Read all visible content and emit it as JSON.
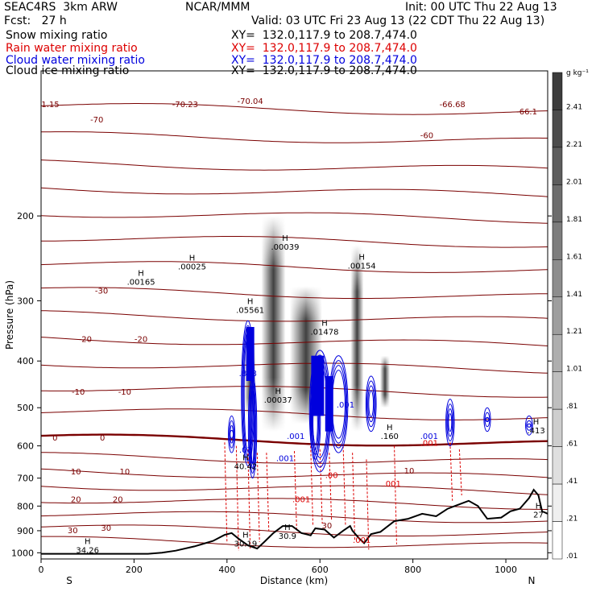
{
  "header": {
    "model": "SEAC4RS  3km ARW",
    "org": "NCAR/MMM",
    "init": "Init: 00 UTC Thu 22 Aug 13",
    "fcst": "Fcst:   27 h",
    "valid": "Valid: 03 UTC Fri 23 Aug 13 (22 CDT Thu 22 Aug 13)"
  },
  "colors": {
    "snow": "#000000",
    "rain": "#dd0000",
    "cloud": "#0000dd",
    "ice": "#000000",
    "temp": "#7a0000",
    "terrain": "#000000"
  },
  "chart_data": {
    "type": "contour",
    "xlabel": "Distance (km)",
    "ylabel": "Pressure (hPa)",
    "x_range": [
      0,
      1090
    ],
    "y_range": [
      1030,
      100
    ],
    "y_scale": "log",
    "x_ticks": [
      0,
      200,
      400,
      600,
      800,
      1000
    ],
    "y_ticks": [
      200,
      300,
      400,
      500,
      600,
      700,
      800,
      900,
      1000
    ],
    "x_end_labels": {
      "left": "S",
      "right": "N"
    },
    "legend_fields": [
      {
        "name": "Snow mixing ratio",
        "xy": "XY=  132.0,117.9 to 208.7,474.0",
        "color": "#000000"
      },
      {
        "name": "Rain water mixing ratio",
        "xy": "XY=  132.0,117.9 to 208.7,474.0",
        "color": "#dd0000"
      },
      {
        "name": "Cloud water mixing ratio",
        "xy": "XY=  132.0,117.9 to 208.7,474.0",
        "color": "#0000dd"
      },
      {
        "name": "Cloud ice mixing ratio",
        "xy": "XY=  132.0,117.9 to 208.7,474.0",
        "color": "#000000"
      }
    ],
    "colorbar": {
      "unit": "g kg⁻¹",
      "labels": [
        "2.41",
        "2.21",
        "2.01",
        "1.81",
        "1.61",
        "1.41",
        "1.21",
        "1.01",
        ".81",
        ".61",
        ".41",
        ".21",
        ".01"
      ]
    },
    "temperature_contours": [
      {
        "label": "-70",
        "x": 120,
        "p": 128
      },
      {
        "label": "-60",
        "x": 830,
        "p": 138
      },
      {
        "label": "-30",
        "x": 130,
        "p": 290
      },
      {
        "label": "-20",
        "x": 95,
        "p": 365
      },
      {
        "label": "-20",
        "x": 215,
        "p": 365
      },
      {
        "label": "-10",
        "x": 80,
        "p": 470
      },
      {
        "label": "-10",
        "x": 180,
        "p": 470
      },
      {
        "label": "0",
        "x": 30,
        "p": 585
      },
      {
        "label": "0",
        "x": 132,
        "p": 585
      },
      {
        "label": "10",
        "x": 75,
        "p": 688
      },
      {
        "label": "10",
        "x": 180,
        "p": 688
      },
      {
        "label": "10",
        "x": 792,
        "p": 685
      },
      {
        "label": "20",
        "x": 75,
        "p": 785
      },
      {
        "label": "20",
        "x": 165,
        "p": 785
      },
      {
        "label": "30",
        "x": 68,
        "p": 910
      },
      {
        "label": "30",
        "x": 140,
        "p": 900
      },
      {
        "label": "30",
        "x": 615,
        "p": 890
      }
    ],
    "edge_values": [
      {
        "label": "1.15",
        "x": 20,
        "p": 119
      },
      {
        "label": "-70.23",
        "x": 310,
        "p": 119
      },
      {
        "label": "-70.04",
        "x": 450,
        "p": 117
      },
      {
        "label": "-66.68",
        "x": 885,
        "p": 119
      },
      {
        "label": "-66.1",
        "x": 1045,
        "p": 123
      }
    ],
    "extrema_labels": [
      {
        "label": ".00165",
        "x": 215,
        "p": 278
      },
      {
        "label": ".00025",
        "x": 325,
        "p": 258
      },
      {
        "label": ".00039",
        "x": 525,
        "p": 235
      },
      {
        "label": ".00154",
        "x": 690,
        "p": 257
      },
      {
        "label": ".05561",
        "x": 450,
        "p": 318
      },
      {
        "label": ".01478",
        "x": 610,
        "p": 353
      },
      {
        "label": ".00037",
        "x": 510,
        "p": 488
      },
      {
        "label": ".160",
        "x": 750,
        "p": 580
      },
      {
        "label": ".413",
        "x": 1065,
        "p": 565
      },
      {
        "label": "40.42",
        "x": 440,
        "p": 670
      },
      {
        "label": "30.19",
        "x": 440,
        "p": 970
      },
      {
        "label": "30.9",
        "x": 530,
        "p": 935
      },
      {
        "label": "34.26",
        "x": 100,
        "p": 1000
      },
      {
        "label": "27",
        "x": 1070,
        "p": 845
      }
    ],
    "rain_labels": [
      {
        "label": ".001",
        "x": 755,
        "p": 728
      },
      {
        "label": ".001",
        "x": 560,
        "p": 785
      },
      {
        "label": ".001",
        "x": 690,
        "p": 953
      },
      {
        "label": ".001",
        "x": 835,
        "p": 600
      },
      {
        "label": ".00",
        "x": 625,
        "p": 700
      }
    ],
    "cloud_labels": [
      {
        "label": ".808",
        "x": 445,
        "p": 430
      },
      {
        "label": ".001",
        "x": 548,
        "p": 580
      },
      {
        "label": ".001",
        "x": 525,
        "p": 645
      },
      {
        "label": ".001",
        "x": 835,
        "p": 580
      },
      {
        "label": ".001",
        "x": 655,
        "p": 500
      },
      {
        "label": ".03",
        "x": 440,
        "p": 620
      }
    ],
    "terrain": [
      [
        0,
        1005
      ],
      [
        230,
        1005
      ],
      [
        260,
        1000
      ],
      [
        290,
        990
      ],
      [
        330,
        970
      ],
      [
        370,
        945
      ],
      [
        395,
        918
      ],
      [
        410,
        910
      ],
      [
        425,
        935
      ],
      [
        445,
        965
      ],
      [
        465,
        980
      ],
      [
        480,
        950
      ],
      [
        500,
        910
      ],
      [
        520,
        880
      ],
      [
        540,
        880
      ],
      [
        560,
        910
      ],
      [
        580,
        920
      ],
      [
        590,
        890
      ],
      [
        610,
        895
      ],
      [
        630,
        930
      ],
      [
        650,
        900
      ],
      [
        665,
        880
      ],
      [
        670,
        900
      ],
      [
        685,
        935
      ],
      [
        695,
        955
      ],
      [
        710,
        915
      ],
      [
        730,
        905
      ],
      [
        760,
        860
      ],
      [
        790,
        850
      ],
      [
        820,
        830
      ],
      [
        850,
        840
      ],
      [
        875,
        810
      ],
      [
        890,
        800
      ],
      [
        920,
        780
      ],
      [
        940,
        800
      ],
      [
        960,
        850
      ],
      [
        990,
        845
      ],
      [
        1010,
        820
      ],
      [
        1030,
        810
      ],
      [
        1050,
        770
      ],
      [
        1060,
        740
      ],
      [
        1070,
        760
      ],
      [
        1078,
        820
      ],
      [
        1090,
        830
      ]
    ],
    "snow_streaks": [
      {
        "x": 500,
        "w": 30,
        "p_top": 200,
        "p_bot": 560
      },
      {
        "x": 570,
        "w": 40,
        "p_top": 280,
        "p_bot": 540
      },
      {
        "x": 680,
        "w": 16,
        "p_top": 230,
        "p_bot": 560
      },
      {
        "x": 450,
        "w": 14,
        "p_top": 370,
        "p_bot": 520
      },
      {
        "x": 740,
        "w": 12,
        "p_top": 390,
        "p_bot": 500
      }
    ]
  }
}
